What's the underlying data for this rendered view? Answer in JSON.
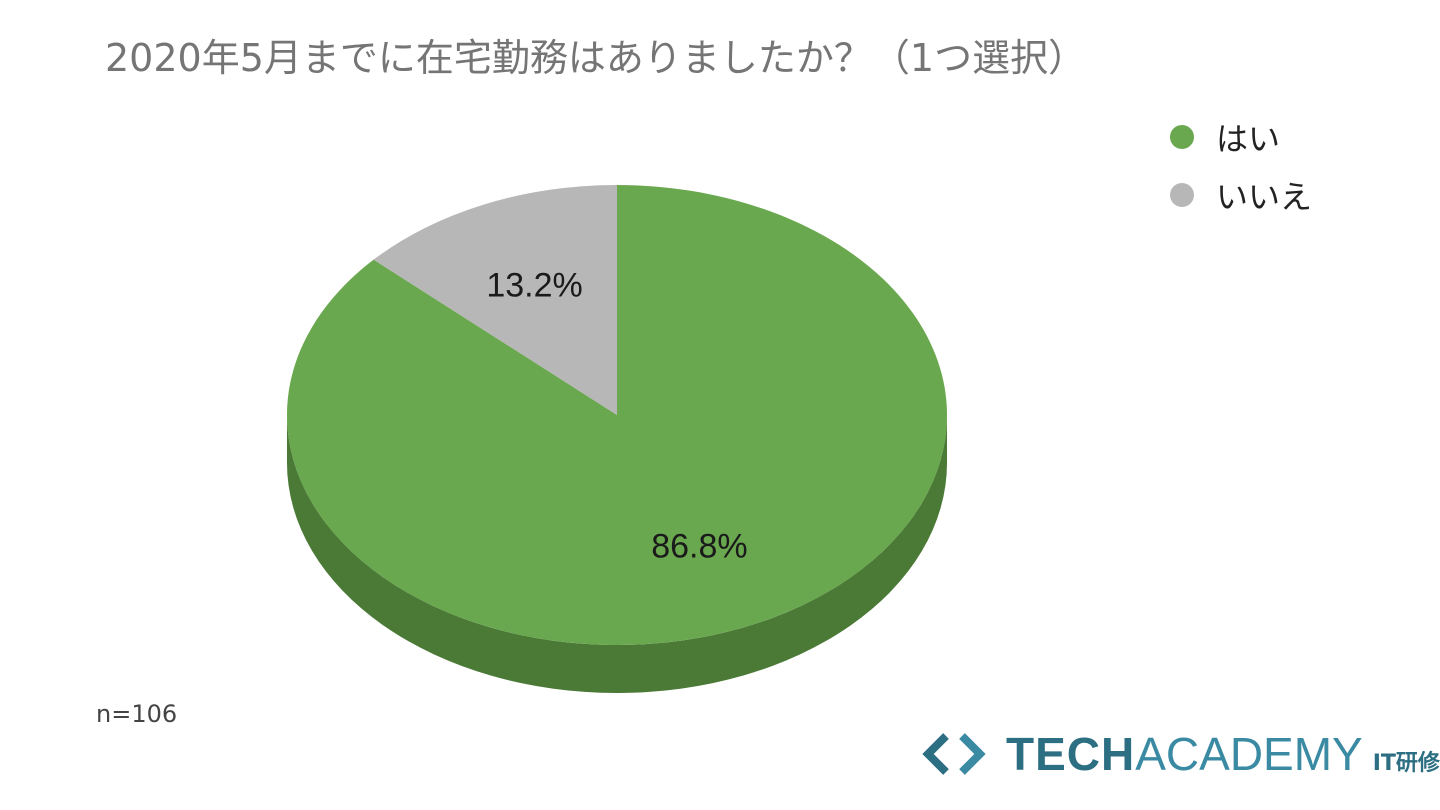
{
  "chart_data": {
    "type": "pie",
    "title": "2020年5月までに在宅勤務はありましたか？（1つ選択）",
    "categories": [
      "はい",
      "いいえ"
    ],
    "values": [
      86.8,
      13.2
    ],
    "data_labels": [
      "86.8%",
      "13.2%"
    ],
    "colors": [
      "#6aa84f",
      "#b7b7b7"
    ],
    "side_colors": [
      "#4a7a36",
      "#8f8f8f"
    ],
    "style": "3d",
    "legend": "top-right",
    "start_angle_deg": 0,
    "direction": "clockwise"
  },
  "note": "n=106",
  "brand": {
    "name_bold": "TECH",
    "name_light": "ACADEMY",
    "suffix": "IT研修",
    "color": "#2c6e82",
    "logo_icon": "code-brackets-icon"
  }
}
